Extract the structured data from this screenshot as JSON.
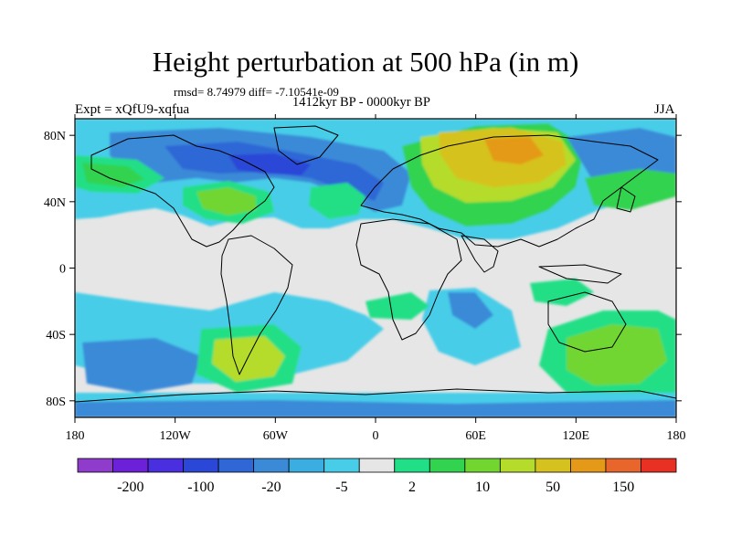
{
  "title": "Height perturbation at 500 hPa (in m)",
  "stats": "rmsd= 8.74979 diff= -7.10541e-09",
  "period": "1412kyr BP - 0000kyr BP",
  "experiment": "Expt = xQfU9-xqfua",
  "season": "JJA",
  "map": {
    "projection": "cylindrical equidistant",
    "lon_range": [
      -180,
      180
    ],
    "lat_range": [
      -90,
      90
    ],
    "x_ticks": [
      "180",
      "120W",
      "60W",
      "0",
      "60E",
      "120E",
      "180"
    ],
    "y_ticks": [
      "80N",
      "40N",
      "0",
      "40S",
      "80S"
    ],
    "background_color": "#e6e6e6",
    "coastline_color": "#000000"
  },
  "colorbar": {
    "colors": [
      "#8f3ccc",
      "#6c20d8",
      "#4a2fe0",
      "#2a47d8",
      "#2f67d6",
      "#3b8ad8",
      "#3aaee0",
      "#47cde8",
      "#e6e6e6",
      "#21df86",
      "#31d34f",
      "#72d630",
      "#b5dc2b",
      "#d6c21e",
      "#e49a18",
      "#e8652b",
      "#e83123"
    ],
    "labels": [
      "-200",
      "-100",
      "-20",
      "-5",
      "2",
      "10",
      "50",
      "150"
    ]
  }
}
